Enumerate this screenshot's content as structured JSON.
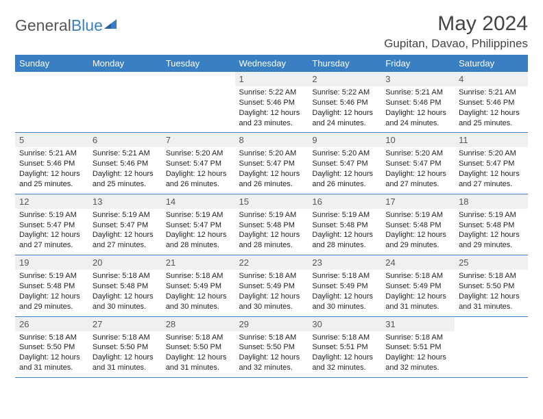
{
  "brand": {
    "part1": "General",
    "part2": "Blue"
  },
  "title": "May 2024",
  "location": "Gupitan, Davao, Philippines",
  "colors": {
    "header_bg": "#3a7fc4",
    "header_text": "#ffffff",
    "daynum_bg": "#eef0f2",
    "border": "#3a7fc4",
    "logo_blue": "#3a7fc4",
    "body_bg": "#ffffff",
    "text": "#222222"
  },
  "weekdays": [
    "Sunday",
    "Monday",
    "Tuesday",
    "Wednesday",
    "Thursday",
    "Friday",
    "Saturday"
  ],
  "weeks": [
    [
      {
        "n": "",
        "sr": "",
        "ss": "",
        "dl": ""
      },
      {
        "n": "",
        "sr": "",
        "ss": "",
        "dl": ""
      },
      {
        "n": "",
        "sr": "",
        "ss": "",
        "dl": ""
      },
      {
        "n": "1",
        "sr": "Sunrise: 5:22 AM",
        "ss": "Sunset: 5:46 PM",
        "dl": "Daylight: 12 hours and 23 minutes."
      },
      {
        "n": "2",
        "sr": "Sunrise: 5:22 AM",
        "ss": "Sunset: 5:46 PM",
        "dl": "Daylight: 12 hours and 24 minutes."
      },
      {
        "n": "3",
        "sr": "Sunrise: 5:21 AM",
        "ss": "Sunset: 5:46 PM",
        "dl": "Daylight: 12 hours and 24 minutes."
      },
      {
        "n": "4",
        "sr": "Sunrise: 5:21 AM",
        "ss": "Sunset: 5:46 PM",
        "dl": "Daylight: 12 hours and 25 minutes."
      }
    ],
    [
      {
        "n": "5",
        "sr": "Sunrise: 5:21 AM",
        "ss": "Sunset: 5:46 PM",
        "dl": "Daylight: 12 hours and 25 minutes."
      },
      {
        "n": "6",
        "sr": "Sunrise: 5:21 AM",
        "ss": "Sunset: 5:46 PM",
        "dl": "Daylight: 12 hours and 25 minutes."
      },
      {
        "n": "7",
        "sr": "Sunrise: 5:20 AM",
        "ss": "Sunset: 5:47 PM",
        "dl": "Daylight: 12 hours and 26 minutes."
      },
      {
        "n": "8",
        "sr": "Sunrise: 5:20 AM",
        "ss": "Sunset: 5:47 PM",
        "dl": "Daylight: 12 hours and 26 minutes."
      },
      {
        "n": "9",
        "sr": "Sunrise: 5:20 AM",
        "ss": "Sunset: 5:47 PM",
        "dl": "Daylight: 12 hours and 26 minutes."
      },
      {
        "n": "10",
        "sr": "Sunrise: 5:20 AM",
        "ss": "Sunset: 5:47 PM",
        "dl": "Daylight: 12 hours and 27 minutes."
      },
      {
        "n": "11",
        "sr": "Sunrise: 5:20 AM",
        "ss": "Sunset: 5:47 PM",
        "dl": "Daylight: 12 hours and 27 minutes."
      }
    ],
    [
      {
        "n": "12",
        "sr": "Sunrise: 5:19 AM",
        "ss": "Sunset: 5:47 PM",
        "dl": "Daylight: 12 hours and 27 minutes."
      },
      {
        "n": "13",
        "sr": "Sunrise: 5:19 AM",
        "ss": "Sunset: 5:47 PM",
        "dl": "Daylight: 12 hours and 27 minutes."
      },
      {
        "n": "14",
        "sr": "Sunrise: 5:19 AM",
        "ss": "Sunset: 5:47 PM",
        "dl": "Daylight: 12 hours and 28 minutes."
      },
      {
        "n": "15",
        "sr": "Sunrise: 5:19 AM",
        "ss": "Sunset: 5:48 PM",
        "dl": "Daylight: 12 hours and 28 minutes."
      },
      {
        "n": "16",
        "sr": "Sunrise: 5:19 AM",
        "ss": "Sunset: 5:48 PM",
        "dl": "Daylight: 12 hours and 28 minutes."
      },
      {
        "n": "17",
        "sr": "Sunrise: 5:19 AM",
        "ss": "Sunset: 5:48 PM",
        "dl": "Daylight: 12 hours and 29 minutes."
      },
      {
        "n": "18",
        "sr": "Sunrise: 5:19 AM",
        "ss": "Sunset: 5:48 PM",
        "dl": "Daylight: 12 hours and 29 minutes."
      }
    ],
    [
      {
        "n": "19",
        "sr": "Sunrise: 5:19 AM",
        "ss": "Sunset: 5:48 PM",
        "dl": "Daylight: 12 hours and 29 minutes."
      },
      {
        "n": "20",
        "sr": "Sunrise: 5:18 AM",
        "ss": "Sunset: 5:48 PM",
        "dl": "Daylight: 12 hours and 30 minutes."
      },
      {
        "n": "21",
        "sr": "Sunrise: 5:18 AM",
        "ss": "Sunset: 5:49 PM",
        "dl": "Daylight: 12 hours and 30 minutes."
      },
      {
        "n": "22",
        "sr": "Sunrise: 5:18 AM",
        "ss": "Sunset: 5:49 PM",
        "dl": "Daylight: 12 hours and 30 minutes."
      },
      {
        "n": "23",
        "sr": "Sunrise: 5:18 AM",
        "ss": "Sunset: 5:49 PM",
        "dl": "Daylight: 12 hours and 30 minutes."
      },
      {
        "n": "24",
        "sr": "Sunrise: 5:18 AM",
        "ss": "Sunset: 5:49 PM",
        "dl": "Daylight: 12 hours and 31 minutes."
      },
      {
        "n": "25",
        "sr": "Sunrise: 5:18 AM",
        "ss": "Sunset: 5:50 PM",
        "dl": "Daylight: 12 hours and 31 minutes."
      }
    ],
    [
      {
        "n": "26",
        "sr": "Sunrise: 5:18 AM",
        "ss": "Sunset: 5:50 PM",
        "dl": "Daylight: 12 hours and 31 minutes."
      },
      {
        "n": "27",
        "sr": "Sunrise: 5:18 AM",
        "ss": "Sunset: 5:50 PM",
        "dl": "Daylight: 12 hours and 31 minutes."
      },
      {
        "n": "28",
        "sr": "Sunrise: 5:18 AM",
        "ss": "Sunset: 5:50 PM",
        "dl": "Daylight: 12 hours and 31 minutes."
      },
      {
        "n": "29",
        "sr": "Sunrise: 5:18 AM",
        "ss": "Sunset: 5:50 PM",
        "dl": "Daylight: 12 hours and 32 minutes."
      },
      {
        "n": "30",
        "sr": "Sunrise: 5:18 AM",
        "ss": "Sunset: 5:51 PM",
        "dl": "Daylight: 12 hours and 32 minutes."
      },
      {
        "n": "31",
        "sr": "Sunrise: 5:18 AM",
        "ss": "Sunset: 5:51 PM",
        "dl": "Daylight: 12 hours and 32 minutes."
      },
      {
        "n": "",
        "sr": "",
        "ss": "",
        "dl": ""
      }
    ]
  ]
}
